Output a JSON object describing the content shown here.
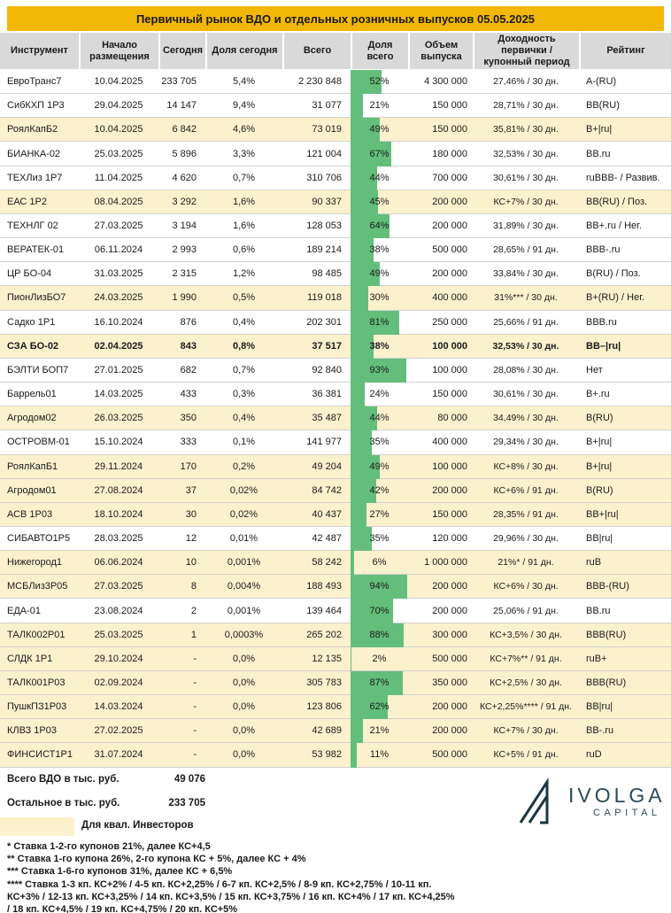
{
  "title": "Первичный рынок ВДО и отдельных розничных выпусков 05.05.2025",
  "colors": {
    "gold": "#f3b705",
    "header_gray": "#d9d9d9",
    "cream_highlight": "#fcf1cd",
    "bar_green": "#63be7b",
    "logo_teal": "#2b4a58"
  },
  "table": {
    "columns": [
      "Инструмент",
      "Начало размещения",
      "Сегодня",
      "Доля сегодня",
      "Всего",
      "Доля всего",
      "Объем выпуска",
      "Доходность первички / купонный период",
      "Рейтинг"
    ],
    "rows": [
      {
        "instrument": "ЕвроТранс7",
        "start": "10.04.2025",
        "today": "233 705",
        "share_today": "5,4%",
        "total": "2 230 848",
        "share_total": "52%",
        "share_total_pct": 52,
        "volume": "4 300 000",
        "yield": "27,46% / 30 дн.",
        "rating": "A-(RU)",
        "highlight": false,
        "bold": false
      },
      {
        "instrument": "СибКХП 1Р3",
        "start": "29.04.2025",
        "today": "14 147",
        "share_today": "9,4%",
        "total": "31 077",
        "share_total": "21%",
        "share_total_pct": 21,
        "volume": "150 000",
        "yield": "28,71% / 30 дн.",
        "rating": "BB(RU)",
        "highlight": false,
        "bold": false
      },
      {
        "instrument": "РоялКапБ2",
        "start": "10.04.2025",
        "today": "6 842",
        "share_today": "4,6%",
        "total": "73 019",
        "share_total": "49%",
        "share_total_pct": 49,
        "volume": "150 000",
        "yield": "35,81% / 30 дн.",
        "rating": "B+|ru|",
        "highlight": true,
        "bold": false
      },
      {
        "instrument": "БИАНКА-02",
        "start": "25.03.2025",
        "today": "5 896",
        "share_today": "3,3%",
        "total": "121 004",
        "share_total": "67%",
        "share_total_pct": 67,
        "volume": "180 000",
        "yield": "32,53% / 30 дн.",
        "rating": "BB.ru",
        "highlight": false,
        "bold": false
      },
      {
        "instrument": "ТЕХЛиз 1Р7",
        "start": "11.04.2025",
        "today": "4 620",
        "share_today": "0,7%",
        "total": "310 706",
        "share_total": "44%",
        "share_total_pct": 44,
        "volume": "700 000",
        "yield": "30,61% / 30 дн.",
        "rating": "ruBBB- / Развив.",
        "highlight": false,
        "bold": false
      },
      {
        "instrument": "ЕАС 1Р2",
        "start": "08.04.2025",
        "today": "3 292",
        "share_today": "1,6%",
        "total": "90 337",
        "share_total": "45%",
        "share_total_pct": 45,
        "volume": "200 000",
        "yield": "КС+7% / 30 дн.",
        "rating": "BB(RU) / Поз.",
        "highlight": true,
        "bold": false
      },
      {
        "instrument": "ТЕХНЛГ 02",
        "start": "27.03.2025",
        "today": "3 194",
        "share_today": "1,6%",
        "total": "128 053",
        "share_total": "64%",
        "share_total_pct": 64,
        "volume": "200 000",
        "yield": "31,89% / 30 дн.",
        "rating": "BB+.ru / Нег.",
        "highlight": false,
        "bold": false
      },
      {
        "instrument": "ВЕРАТЕК-01",
        "start": "06.11.2024",
        "today": "2 993",
        "share_today": "0,6%",
        "total": "189 214",
        "share_total": "38%",
        "share_total_pct": 38,
        "volume": "500 000",
        "yield": "28,65% / 91 дн.",
        "rating": "BBB-.ru",
        "highlight": false,
        "bold": false
      },
      {
        "instrument": "ЦР БО-04",
        "start": "31.03.2025",
        "today": "2 315",
        "share_today": "1,2%",
        "total": "98 485",
        "share_total": "49%",
        "share_total_pct": 49,
        "volume": "200 000",
        "yield": "33,84% / 30 дн.",
        "rating": "B(RU) / Поз.",
        "highlight": false,
        "bold": false
      },
      {
        "instrument": "ПионЛизБО7",
        "start": "24.03.2025",
        "today": "1 990",
        "share_today": "0,5%",
        "total": "119 018",
        "share_total": "30%",
        "share_total_pct": 30,
        "volume": "400 000",
        "yield": "31%*** / 30 дн.",
        "rating": "B+(RU) / Нег.",
        "highlight": true,
        "bold": false
      },
      {
        "instrument": "Садко 1Р1",
        "start": "16.10.2024",
        "today": "876",
        "share_today": "0,4%",
        "total": "202 301",
        "share_total": "81%",
        "share_total_pct": 81,
        "volume": "250 000",
        "yield": "25,66% / 91 дн.",
        "rating": "BBB.ru",
        "highlight": false,
        "bold": false
      },
      {
        "instrument": "СЗА БО-02",
        "start": "02.04.2025",
        "today": "843",
        "share_today": "0,8%",
        "total": "37 517",
        "share_total": "38%",
        "share_total_pct": 38,
        "volume": "100 000",
        "yield": "32,53% / 30 дн.",
        "rating": "BB–|ru|",
        "highlight": true,
        "bold": true
      },
      {
        "instrument": "БЭЛТИ БОП7",
        "start": "27.01.2025",
        "today": "682",
        "share_today": "0,7%",
        "total": "92 840",
        "share_total": "93%",
        "share_total_pct": 93,
        "volume": "100 000",
        "yield": "28,08% / 30 дн.",
        "rating": "Нет",
        "highlight": false,
        "bold": false
      },
      {
        "instrument": "Баррель01",
        "start": "14.03.2025",
        "today": "433",
        "share_today": "0,3%",
        "total": "36 381",
        "share_total": "24%",
        "share_total_pct": 24,
        "volume": "150 000",
        "yield": "30,61% / 30 дн.",
        "rating": "B+.ru",
        "highlight": false,
        "bold": false
      },
      {
        "instrument": "Агродом02",
        "start": "26.03.2025",
        "today": "350",
        "share_today": "0,4%",
        "total": "35 487",
        "share_total": "44%",
        "share_total_pct": 44,
        "volume": "80 000",
        "yield": "34,49% / 30 дн.",
        "rating": "B(RU)",
        "highlight": true,
        "bold": false
      },
      {
        "instrument": "ОСТРОВМ-01",
        "start": "15.10.2024",
        "today": "333",
        "share_today": "0,1%",
        "total": "141 977",
        "share_total": "35%",
        "share_total_pct": 35,
        "volume": "400 000",
        "yield": "29,34% / 30 дн.",
        "rating": "B+|ru|",
        "highlight": false,
        "bold": false
      },
      {
        "instrument": "РоялКапБ1",
        "start": "29.11.2024",
        "today": "170",
        "share_today": "0,2%",
        "total": "49 204",
        "share_total": "49%",
        "share_total_pct": 49,
        "volume": "100 000",
        "yield": "КС+8% / 30 дн.",
        "rating": "B+|ru|",
        "highlight": true,
        "bold": false
      },
      {
        "instrument": "Агродом01",
        "start": "27.08.2024",
        "today": "37",
        "share_today": "0,02%",
        "total": "84 742",
        "share_total": "42%",
        "share_total_pct": 42,
        "volume": "200 000",
        "yield": "КС+6% / 91 дн.",
        "rating": "B(RU)",
        "highlight": true,
        "bold": false
      },
      {
        "instrument": "АСВ 1Р03",
        "start": "18.10.2024",
        "today": "30",
        "share_today": "0,02%",
        "total": "40 437",
        "share_total": "27%",
        "share_total_pct": 27,
        "volume": "150 000",
        "yield": "28,35% / 91 дн.",
        "rating": "BB+|ru|",
        "highlight": true,
        "bold": false
      },
      {
        "instrument": "СИБАВТО1Р5",
        "start": "28.03.2025",
        "today": "12",
        "share_today": "0,01%",
        "total": "42 487",
        "share_total": "35%",
        "share_total_pct": 35,
        "volume": "120 000",
        "yield": "29,96% / 30 дн.",
        "rating": "BB|ru|",
        "highlight": false,
        "bold": false
      },
      {
        "instrument": "Нижегород1",
        "start": "06.06.2024",
        "today": "10",
        "share_today": "0,001%",
        "total": "58 242",
        "share_total": "6%",
        "share_total_pct": 6,
        "volume": "1 000 000",
        "yield": "21%* / 91 дн.",
        "rating": "ruB",
        "highlight": true,
        "bold": false
      },
      {
        "instrument": "МСБЛиз3Р05",
        "start": "27.03.2025",
        "today": "8",
        "share_today": "0,004%",
        "total": "188 493",
        "share_total": "94%",
        "share_total_pct": 94,
        "volume": "200 000",
        "yield": "КС+6% / 30 дн.",
        "rating": "BBB-(RU)",
        "highlight": true,
        "bold": false
      },
      {
        "instrument": "ЕДА-01",
        "start": "23.08.2024",
        "today": "2",
        "share_today": "0,001%",
        "total": "139 464",
        "share_total": "70%",
        "share_total_pct": 70,
        "volume": "200 000",
        "yield": "25,06% / 91 дн.",
        "rating": "BB.ru",
        "highlight": false,
        "bold": false
      },
      {
        "instrument": "ТАЛК002Р01",
        "start": "25.03.2025",
        "today": "1",
        "share_today": "0,0003%",
        "total": "265 202",
        "share_total": "88%",
        "share_total_pct": 88,
        "volume": "300 000",
        "yield": "КС+3,5% / 30 дн.",
        "rating": "BBB(RU)",
        "highlight": true,
        "bold": false
      },
      {
        "instrument": "СЛДК 1Р1",
        "start": "29.10.2024",
        "today": "-",
        "share_today": "0,0%",
        "total": "12 135",
        "share_total": "2%",
        "share_total_pct": 2,
        "volume": "500 000",
        "yield": "КС+7%** / 91 дн.",
        "rating": "ruB+",
        "highlight": true,
        "bold": false
      },
      {
        "instrument": "ТАЛК001Р03",
        "start": "02.09.2024",
        "today": "-",
        "share_today": "0,0%",
        "total": "305 783",
        "share_total": "87%",
        "share_total_pct": 87,
        "volume": "350 000",
        "yield": "КС+2,5% / 30 дн.",
        "rating": "BBB(RU)",
        "highlight": true,
        "bold": false
      },
      {
        "instrument": "ПушкПЗ1Р03",
        "start": "14.03.2024",
        "today": "-",
        "share_today": "0,0%",
        "total": "123 806",
        "share_total": "62%",
        "share_total_pct": 62,
        "volume": "200 000",
        "yield": "КС+2,25%**** / 91 дн.",
        "rating": "BB|ru|",
        "highlight": true,
        "bold": false
      },
      {
        "instrument": "КЛВЗ 1Р03",
        "start": "27.02.2025",
        "today": "-",
        "share_today": "0,0%",
        "total": "42 689",
        "share_total": "21%",
        "share_total_pct": 21,
        "volume": "200 000",
        "yield": "КС+7% / 30 дн.",
        "rating": "BB-.ru",
        "highlight": true,
        "bold": false
      },
      {
        "instrument": "ФИНСИСТ1Р1",
        "start": "31.07.2024",
        "today": "-",
        "share_today": "0,0%",
        "total": "53 982",
        "share_total": "11%",
        "share_total_pct": 11,
        "volume": "500 000",
        "yield": "КС+5% / 91 дн.",
        "rating": "ruD",
        "highlight": true,
        "bold": false
      }
    ]
  },
  "summary": {
    "total_vdo_label": "Всего ВДО в тыс. руб.",
    "total_vdo_value": "49 076",
    "other_label": "Остальное в тыс. руб.",
    "other_value": "233 705",
    "qualified_label": "Для квал. Инвесторов"
  },
  "footnotes": {
    "lines": [
      "* Ставка 1-2-го купонов 21%, далее КС+4,5",
      "** Ставка 1-го купона 26%, 2-го купона КС + 5%, далее КС + 4%",
      "*** Ставка 1-6-го купонов 31%, далее КС + 6,5%",
      "**** Ставка 1-3 кп. КС+2% / 4-5 кп. КС+2,25% / 6-7 кп. КС+2,5% / 8-9 кп. КС+2,75% / 10-11 кп.",
      "КС+3% / 12-13 кп. КС+3,25% / 14 кп. КС+3,5% / 15 кп. КС+3,75% / 16 кп. КС+4% / 17 кп. КС+4,25%",
      "/ 18 кп. КС+4,5% / 19 кп. КС+4,75% / 20 кп. КС+5%"
    ]
  },
  "logo": {
    "name": "IVOLGA",
    "sub": "CAPITAL"
  }
}
